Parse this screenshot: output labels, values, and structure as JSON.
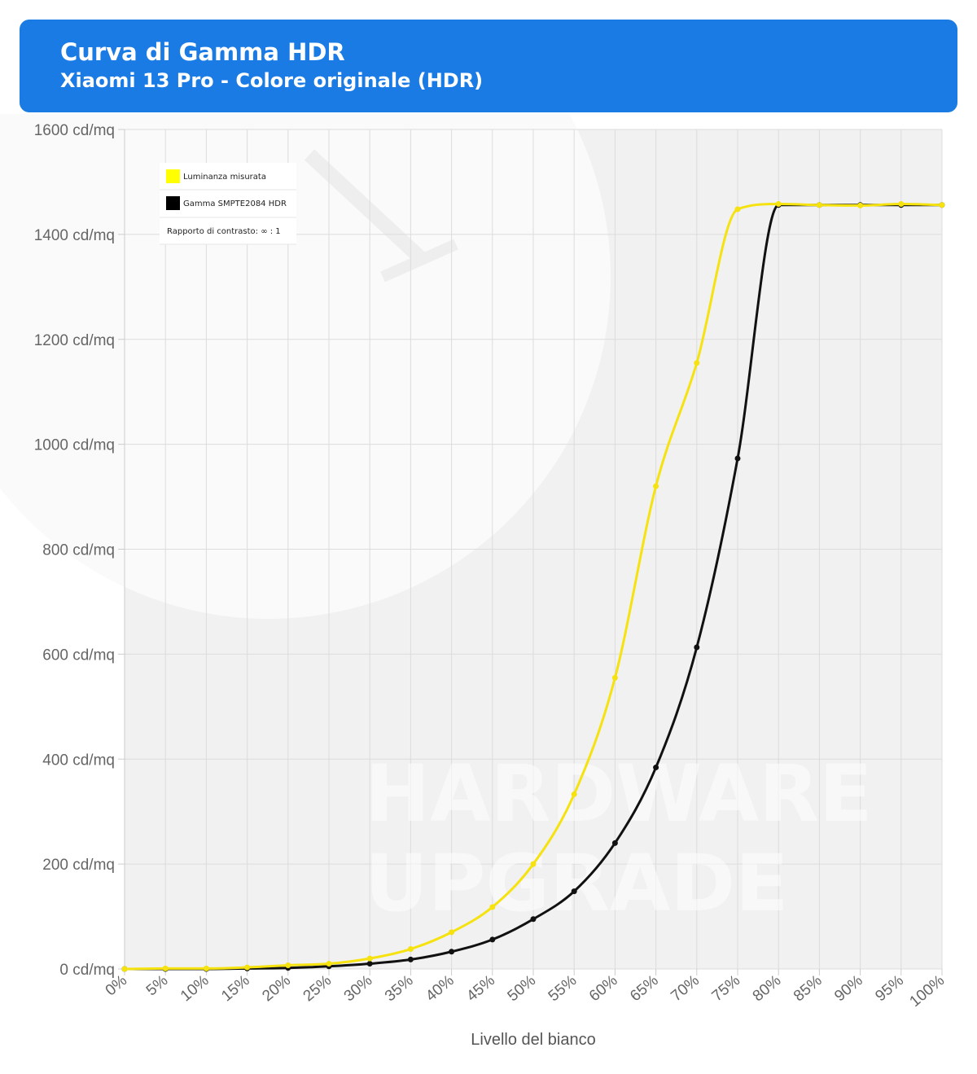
{
  "header": {
    "title": "Curva di Gamma HDR",
    "subtitle": "Xiaomi 13 Pro - Colore originale (HDR)"
  },
  "watermark": {
    "line1": "HARDWARE",
    "line2": "UPGRADE"
  },
  "colors": {
    "header_bg": "#1a7be5",
    "measured": "#f5e20f",
    "reference": "#111111",
    "grid": "#dddddd"
  },
  "chart_data": {
    "type": "line",
    "title": "Curva di Gamma HDR",
    "subtitle": "Xiaomi 13 Pro - Colore originale (HDR)",
    "xlabel": "Livello del bianco",
    "ylabel": "",
    "x_unit": "%",
    "y_unit": " cd/mq",
    "ylim": [
      0,
      1600
    ],
    "y_ticks": [
      0,
      200,
      400,
      600,
      800,
      1000,
      1200,
      1400,
      1600
    ],
    "grid": true,
    "legend_position": "top-left",
    "x": [
      0,
      5,
      10,
      15,
      20,
      25,
      30,
      35,
      40,
      45,
      50,
      55,
      60,
      65,
      70,
      75,
      80,
      85,
      90,
      95,
      100
    ],
    "series": [
      {
        "name": "Luminanza misurata",
        "color": "#f5e20f",
        "values": [
          0,
          1,
          1,
          3,
          7,
          10,
          20,
          38,
          70,
          118,
          200,
          333,
          555,
          920,
          1155,
          1448,
          1458,
          1456,
          1455,
          1458,
          1456
        ]
      },
      {
        "name": "Gamma SMPTE2084 HDR",
        "color": "#111111",
        "values": [
          0,
          0,
          0,
          1,
          2,
          5,
          10,
          18,
          33,
          56,
          95,
          148,
          240,
          384,
          613,
          973,
          1456,
          1456,
          1456,
          1456,
          1456
        ]
      }
    ],
    "legend_note": "Rapporto di contrasto: ∞ : 1"
  }
}
